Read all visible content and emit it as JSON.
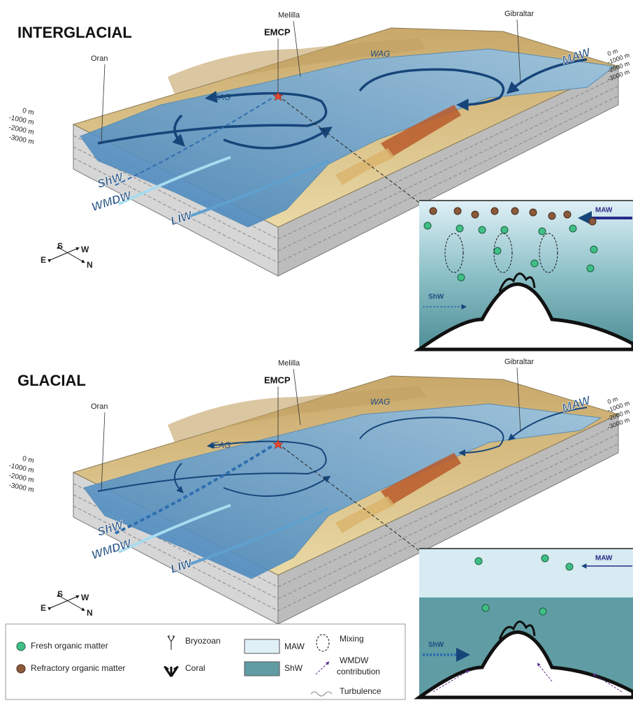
{
  "panels": [
    {
      "title": "INTERGLACIAL",
      "places": {
        "oran": "Oran",
        "melilla": "Melilla",
        "emcp": "EMCP",
        "gibraltar": "Gibraltar"
      },
      "gyres": [
        "EAG",
        "WAG"
      ],
      "water_masses": {
        "maw": "MAW",
        "shw": "ShW",
        "wmdw": "WMDW",
        "liw": "LIW"
      },
      "depths_left": [
        "0 m",
        "-1000 m",
        "-2000 m",
        "-3000 m"
      ],
      "depths_right": [
        "0 m",
        "-1000 m",
        "-2000 m",
        "-3000 m"
      ],
      "compass": [
        "S",
        "W",
        "E",
        "N"
      ],
      "inset": {
        "maw": "MAW",
        "shw": "ShW"
      }
    },
    {
      "title": "GLACIAL",
      "places": {
        "oran": "Oran",
        "melilla": "Melilla",
        "emcp": "EMCP",
        "gibraltar": "Gibraltar"
      },
      "gyres": [
        "EAG",
        "WAG"
      ],
      "water_masses": {
        "maw": "MAW",
        "shw": "ShW",
        "wmdw": "WMDW",
        "liw": "LIW"
      },
      "depths_left": [
        "0 m",
        "-1000 m",
        "-2000 m",
        "-3000 m"
      ],
      "depths_right": [
        "0 m",
        "-1000 m",
        "-2000 m",
        "-3000 m"
      ],
      "compass": [
        "S",
        "W",
        "E",
        "N"
      ],
      "inset": {
        "maw": "MAW",
        "shw": "ShW"
      }
    }
  ],
  "legend": {
    "fresh": "Fresh organic matter",
    "refractory": "Refractory organic matter",
    "bryozoan": "Bryozoan",
    "coral": "Coral",
    "maw": "MAW",
    "shw": "ShW",
    "mixing": "Mixing",
    "wmdw": [
      "WMDW",
      "contribution"
    ],
    "turbulence": "Turbulence"
  }
}
